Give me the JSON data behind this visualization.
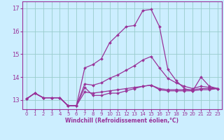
{
  "xlabel": "Windchill (Refroidissement éolien,°C)",
  "background_color": "#cceeff",
  "grid_color": "#99cccc",
  "line_color": "#993399",
  "xlim": [
    -0.5,
    23.5
  ],
  "ylim": [
    12.6,
    17.3
  ],
  "yticks": [
    13,
    14,
    15,
    16,
    17
  ],
  "xticks": [
    0,
    1,
    2,
    3,
    4,
    5,
    6,
    7,
    8,
    9,
    10,
    11,
    12,
    13,
    14,
    15,
    16,
    17,
    18,
    19,
    20,
    21,
    22,
    23
  ],
  "series": [
    [
      13.05,
      13.3,
      13.1,
      13.1,
      13.1,
      12.75,
      12.75,
      13.55,
      13.2,
      13.2,
      13.3,
      13.3,
      13.4,
      13.5,
      13.6,
      13.65,
      13.5,
      13.45,
      13.45,
      13.45,
      13.45,
      13.5,
      13.5,
      13.5
    ],
    [
      13.05,
      13.3,
      13.1,
      13.1,
      13.1,
      12.75,
      12.75,
      14.4,
      14.55,
      14.8,
      15.5,
      15.85,
      16.2,
      16.25,
      16.9,
      16.95,
      16.2,
      14.35,
      13.85,
      13.5,
      13.4,
      14.0,
      13.6,
      13.5
    ],
    [
      13.05,
      13.3,
      13.1,
      13.1,
      13.1,
      12.75,
      12.75,
      13.7,
      13.65,
      13.75,
      13.95,
      14.1,
      14.3,
      14.5,
      14.75,
      14.9,
      14.4,
      13.95,
      13.75,
      13.6,
      13.5,
      13.6,
      13.55,
      13.5
    ],
    [
      13.05,
      13.3,
      13.1,
      13.1,
      13.1,
      12.75,
      12.75,
      13.35,
      13.3,
      13.35,
      13.4,
      13.45,
      13.5,
      13.55,
      13.6,
      13.65,
      13.45,
      13.4,
      13.4,
      13.4,
      13.4,
      13.45,
      13.45,
      13.5
    ]
  ]
}
